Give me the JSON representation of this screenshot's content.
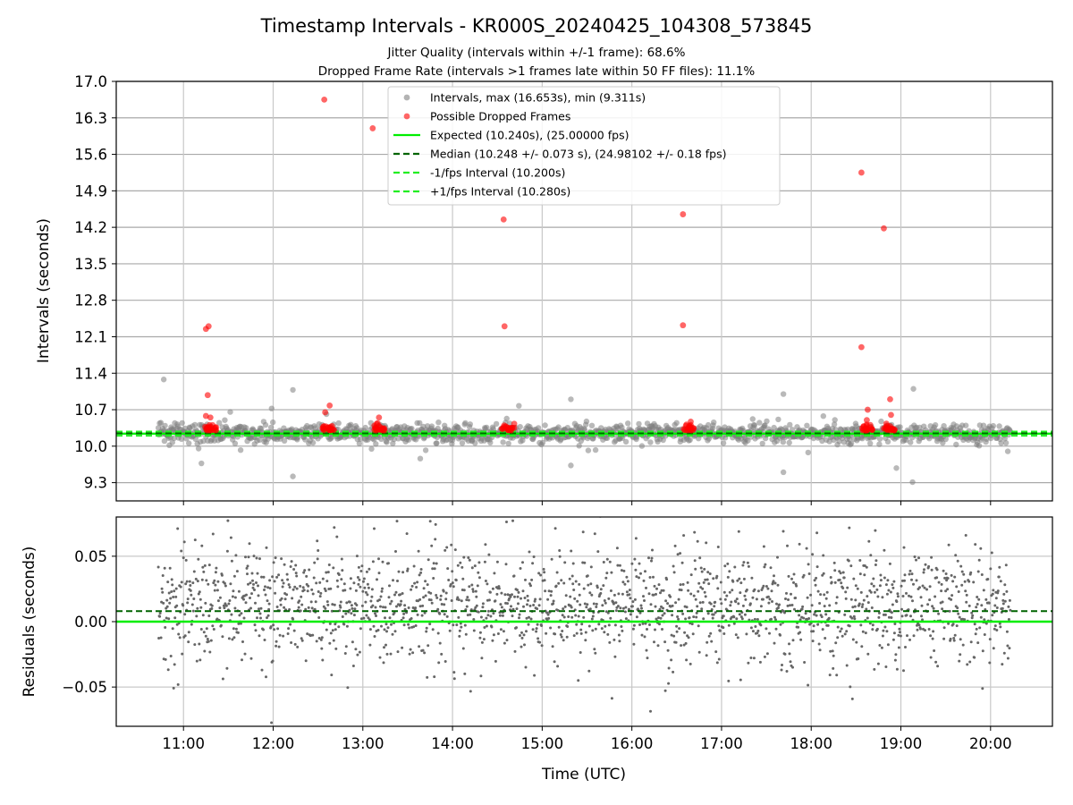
{
  "chart_data": {
    "type": "scatter",
    "title": "Timestamp Intervals - KR000S_20240425_104308_573845",
    "subtitles": [
      "Jitter Quality (intervals within +/-1 frame): 68.6%",
      "Dropped Frame Rate (intervals >1 frames late within 50 FF files): 11.1%"
    ],
    "xlabel": "Time (UTC)",
    "x_ticks": [
      "11:00",
      "12:00",
      "13:00",
      "14:00",
      "15:00",
      "16:00",
      "17:00",
      "18:00",
      "19:00",
      "20:00"
    ],
    "x_range_hours": [
      10.25,
      20.69
    ],
    "data_range_hours": [
      10.72,
      20.22
    ],
    "grid": true,
    "top_panel": {
      "ylabel": "Intervals (seconds)",
      "y_ticks": [
        "17.0",
        "16.3",
        "15.6",
        "14.9",
        "14.2",
        "13.5",
        "12.8",
        "12.1",
        "11.4",
        "10.7",
        "10.0",
        "9.3"
      ],
      "ylim": [
        8.95,
        17.0
      ],
      "legend_position": "upper-center",
      "legend": [
        {
          "label": "Intervals, max (16.653s), min (9.311s)",
          "kind": "marker",
          "color": "#808080"
        },
        {
          "label": "Possible Dropped Frames",
          "kind": "marker",
          "color": "#ff0000"
        },
        {
          "label": "Expected (10.240s), (25.00000 fps)",
          "kind": "solid",
          "color": "#00ee00"
        },
        {
          "label": "Median (10.248 +/- 0.073 s), (24.98102 +/- 0.18 fps)",
          "kind": "dashed",
          "color": "#006400"
        },
        {
          "label": "-1/fps Interval (10.200s)",
          "kind": "dashed",
          "color": "#22ee22"
        },
        {
          "label": "+1/fps Interval (10.280s)",
          "kind": "dashed",
          "color": "#22ee22"
        }
      ],
      "lines": {
        "expected": 10.24,
        "median": 10.248,
        "minus_1_fps": 10.2,
        "plus_1_fps": 10.28
      },
      "dropped_frames": [
        {
          "x": 11.25,
          "y": 12.25
        },
        {
          "x": 11.28,
          "y": 12.3
        },
        {
          "x": 11.27,
          "y": 10.98
        },
        {
          "x": 11.25,
          "y": 10.58
        },
        {
          "x": 11.3,
          "y": 10.55
        },
        {
          "x": 12.57,
          "y": 16.65
        },
        {
          "x": 12.58,
          "y": 10.65
        },
        {
          "x": 12.63,
          "y": 10.78
        },
        {
          "x": 13.11,
          "y": 16.1
        },
        {
          "x": 13.18,
          "y": 10.55
        },
        {
          "x": 14.57,
          "y": 14.35
        },
        {
          "x": 14.58,
          "y": 12.3
        },
        {
          "x": 16.57,
          "y": 14.45
        },
        {
          "x": 16.57,
          "y": 12.32
        },
        {
          "x": 18.56,
          "y": 15.25
        },
        {
          "x": 18.56,
          "y": 11.9
        },
        {
          "x": 18.81,
          "y": 14.18
        },
        {
          "x": 18.63,
          "y": 10.7
        },
        {
          "x": 18.62,
          "y": 10.5
        },
        {
          "x": 18.88,
          "y": 10.9
        },
        {
          "x": 18.89,
          "y": 10.6
        }
      ],
      "dropped_clusters": [
        11.3,
        12.62,
        13.18,
        14.62,
        16.62,
        18.62,
        18.88
      ],
      "interval_outliers": [
        {
          "x": 10.78,
          "y": 11.28
        },
        {
          "x": 12.22,
          "y": 11.08
        },
        {
          "x": 15.32,
          "y": 10.9
        },
        {
          "x": 17.69,
          "y": 11.0
        },
        {
          "x": 19.14,
          "y": 11.1
        },
        {
          "x": 12.22,
          "y": 9.42
        },
        {
          "x": 17.69,
          "y": 9.5
        },
        {
          "x": 19.13,
          "y": 9.31
        },
        {
          "x": 15.32,
          "y": 9.63
        },
        {
          "x": 11.2,
          "y": 9.67
        },
        {
          "x": 18.95,
          "y": 9.58
        }
      ]
    },
    "bottom_panel": {
      "ylabel": "Residuals (seconds)",
      "y_ticks": [
        "0.05",
        "0.00",
        "−0.05"
      ],
      "ylim": [
        -0.08,
        0.08
      ],
      "lines": {
        "expected": 0.0,
        "median": 0.008
      }
    }
  }
}
